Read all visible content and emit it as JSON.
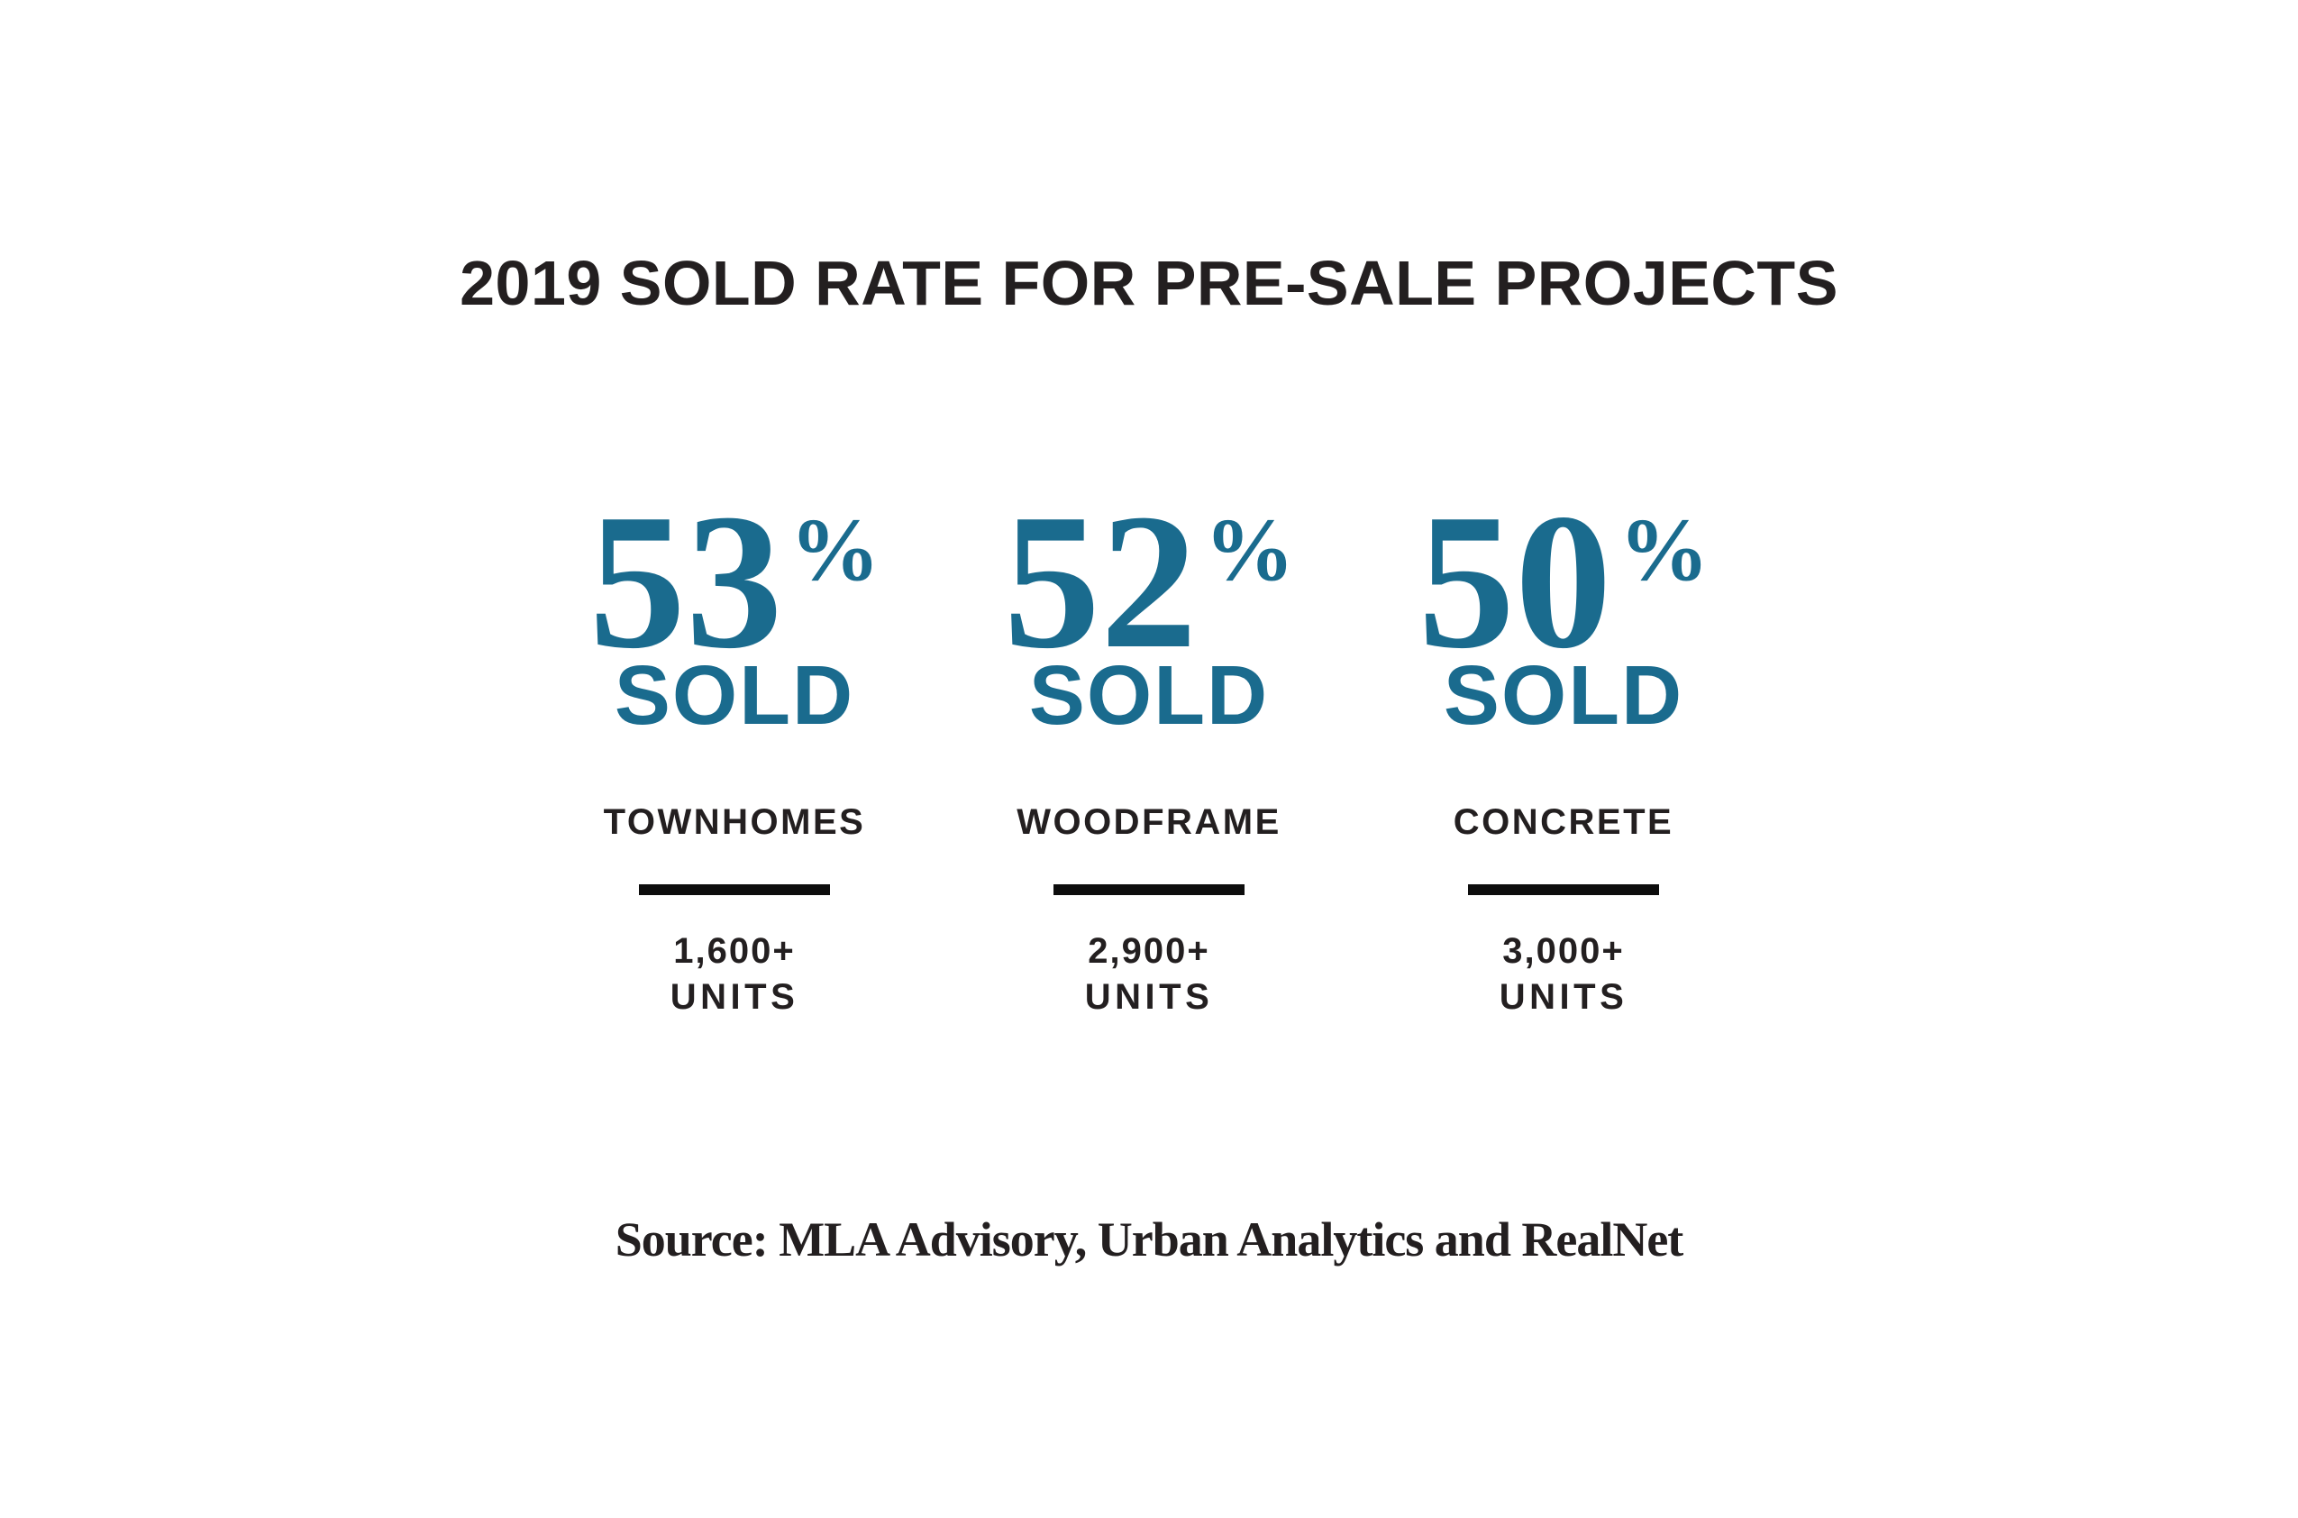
{
  "title": "2019 SOLD RATE FOR PRE-SALE PROJECTS",
  "source": "Source: MLA Advisory, Urban Analytics and RealNet",
  "colors": {
    "accent_teal": "#1A6B8E",
    "text_black": "#231F20"
  },
  "stats": [
    {
      "value": "53",
      "percent": "%",
      "sold": "SOLD",
      "category": "TOWNHOMES",
      "units_value": "1,600+",
      "units_word": "UNITS"
    },
    {
      "value": "52",
      "percent": "%",
      "sold": "SOLD",
      "category": "WOODFRAME",
      "units_value": "2,900+",
      "units_word": "UNITS"
    },
    {
      "value": "50",
      "percent": "%",
      "sold": "SOLD",
      "category": "CONCRETE",
      "units_value": "3,000+",
      "units_word": "UNITS"
    }
  ],
  "chart_data": {
    "type": "table",
    "title": "2019 SOLD RATE FOR PRE-SALE PROJECTS",
    "categories": [
      "TOWNHOMES",
      "WOODFRAME",
      "CONCRETE"
    ],
    "series": [
      {
        "name": "Sold rate (%)",
        "values": [
          53,
          52,
          50
        ]
      },
      {
        "name": "Units",
        "values": [
          "1,600+",
          "2,900+",
          "3,000+"
        ]
      }
    ],
    "source": "Source: MLA Advisory, Urban Analytics and RealNet"
  }
}
